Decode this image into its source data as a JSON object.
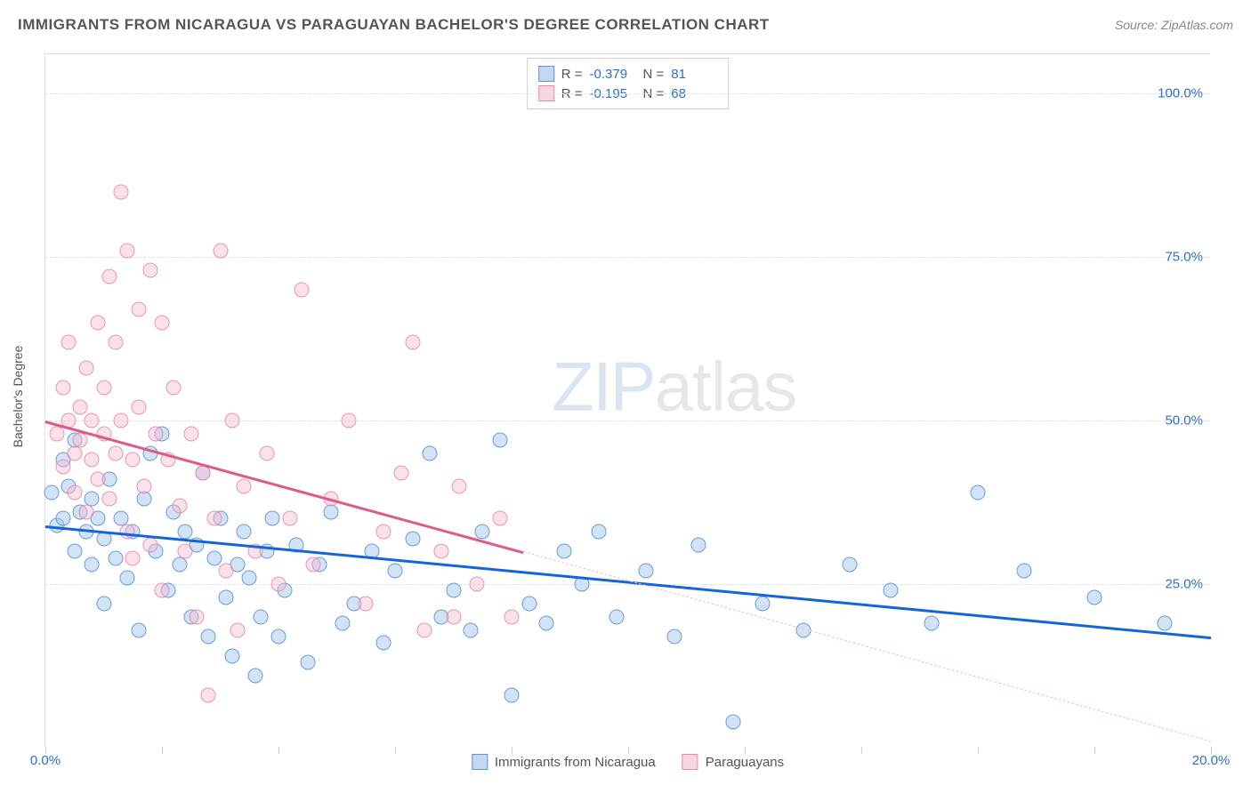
{
  "header": {
    "title": "IMMIGRANTS FROM NICARAGUA VS PARAGUAYAN BACHELOR'S DEGREE CORRELATION CHART",
    "source_prefix": "Source: ",
    "source_name": "ZipAtlas.com"
  },
  "watermark": {
    "part1": "ZIP",
    "part2": "atlas"
  },
  "chart": {
    "type": "scatter",
    "background_color": "#ffffff",
    "grid_color": "#e0e0e0",
    "axis_label_color": "#2f6fc9",
    "text_color": "#555555",
    "xlim": [
      0,
      20
    ],
    "ylim": [
      0,
      106
    ],
    "x_ticks": [
      0,
      2,
      4,
      6,
      8,
      10,
      12,
      14,
      16,
      18,
      20
    ],
    "x_tick_labels": {
      "0": "0.0%",
      "20": "20.0%"
    },
    "y_ticks": [
      25,
      50,
      75,
      100
    ],
    "y_tick_labels": {
      "25": "25.0%",
      "50": "50.0%",
      "75": "75.0%",
      "100": "100.0%"
    },
    "ylabel": "Bachelor's Degree",
    "marker_radius": 8.5,
    "marker_stroke_width": 1.5,
    "marker_fill_opacity": 0.25,
    "series": [
      {
        "id": "nicaragua",
        "label": "Immigrants from Nicaragua",
        "color_stroke": "#5a93d6",
        "color_fill": "#9cc0e8",
        "R": "-0.379",
        "N": "81",
        "trend": {
          "x1": 0,
          "y1": 34,
          "x2": 20,
          "y2": 17,
          "color": "#1565d8",
          "width": 2.5
        },
        "points": [
          [
            0.1,
            39
          ],
          [
            0.2,
            34
          ],
          [
            0.3,
            35
          ],
          [
            0.3,
            44
          ],
          [
            0.4,
            40
          ],
          [
            0.5,
            30
          ],
          [
            0.5,
            47
          ],
          [
            0.6,
            36
          ],
          [
            0.7,
            33
          ],
          [
            0.8,
            38
          ],
          [
            0.8,
            28
          ],
          [
            0.9,
            35
          ],
          [
            1.0,
            22
          ],
          [
            1.0,
            32
          ],
          [
            1.1,
            41
          ],
          [
            1.2,
            29
          ],
          [
            1.3,
            35
          ],
          [
            1.4,
            26
          ],
          [
            1.5,
            33
          ],
          [
            1.6,
            18
          ],
          [
            1.7,
            38
          ],
          [
            1.8,
            45
          ],
          [
            1.9,
            30
          ],
          [
            2.0,
            48
          ],
          [
            2.1,
            24
          ],
          [
            2.2,
            36
          ],
          [
            2.3,
            28
          ],
          [
            2.4,
            33
          ],
          [
            2.5,
            20
          ],
          [
            2.6,
            31
          ],
          [
            2.7,
            42
          ],
          [
            2.8,
            17
          ],
          [
            2.9,
            29
          ],
          [
            3.0,
            35
          ],
          [
            3.1,
            23
          ],
          [
            3.2,
            14
          ],
          [
            3.3,
            28
          ],
          [
            3.4,
            33
          ],
          [
            3.5,
            26
          ],
          [
            3.6,
            11
          ],
          [
            3.7,
            20
          ],
          [
            3.8,
            30
          ],
          [
            3.9,
            35
          ],
          [
            4.0,
            17
          ],
          [
            4.1,
            24
          ],
          [
            4.3,
            31
          ],
          [
            4.5,
            13
          ],
          [
            4.7,
            28
          ],
          [
            4.9,
            36
          ],
          [
            5.1,
            19
          ],
          [
            5.3,
            22
          ],
          [
            5.6,
            30
          ],
          [
            5.8,
            16
          ],
          [
            6.0,
            27
          ],
          [
            6.3,
            32
          ],
          [
            6.6,
            45
          ],
          [
            6.8,
            20
          ],
          [
            7.0,
            24
          ],
          [
            7.3,
            18
          ],
          [
            7.5,
            33
          ],
          [
            7.8,
            47
          ],
          [
            8.0,
            8
          ],
          [
            8.3,
            22
          ],
          [
            8.6,
            19
          ],
          [
            8.9,
            30
          ],
          [
            9.2,
            25
          ],
          [
            9.5,
            33
          ],
          [
            9.8,
            20
          ],
          [
            10.3,
            27
          ],
          [
            10.8,
            17
          ],
          [
            11.2,
            31
          ],
          [
            11.8,
            4
          ],
          [
            12.3,
            22
          ],
          [
            13.0,
            18
          ],
          [
            13.8,
            28
          ],
          [
            14.5,
            24
          ],
          [
            15.2,
            19
          ],
          [
            16.0,
            39
          ],
          [
            16.8,
            27
          ],
          [
            18.0,
            23
          ],
          [
            19.2,
            19
          ]
        ]
      },
      {
        "id": "paraguay",
        "label": "Paraguayans",
        "color_stroke": "#e88aa8",
        "color_fill": "#f5bccf",
        "R": "-0.195",
        "N": "68",
        "trend": {
          "x1": 0,
          "y1": 50,
          "x2": 8.2,
          "y2": 30,
          "color": "#e05a87",
          "width": 2.5,
          "dash_extend": {
            "x2": 20,
            "y2": 1,
            "color": "#f5bccf"
          }
        },
        "points": [
          [
            0.2,
            48
          ],
          [
            0.3,
            43
          ],
          [
            0.3,
            55
          ],
          [
            0.4,
            50
          ],
          [
            0.4,
            62
          ],
          [
            0.5,
            45
          ],
          [
            0.5,
            39
          ],
          [
            0.6,
            52
          ],
          [
            0.6,
            47
          ],
          [
            0.7,
            58
          ],
          [
            0.7,
            36
          ],
          [
            0.8,
            44
          ],
          [
            0.8,
            50
          ],
          [
            0.9,
            65
          ],
          [
            0.9,
            41
          ],
          [
            1.0,
            48
          ],
          [
            1.0,
            55
          ],
          [
            1.1,
            72
          ],
          [
            1.1,
            38
          ],
          [
            1.2,
            45
          ],
          [
            1.2,
            62
          ],
          [
            1.3,
            50
          ],
          [
            1.3,
            85
          ],
          [
            1.4,
            33
          ],
          [
            1.4,
            76
          ],
          [
            1.5,
            44
          ],
          [
            1.5,
            29
          ],
          [
            1.6,
            52
          ],
          [
            1.6,
            67
          ],
          [
            1.7,
            40
          ],
          [
            1.8,
            73
          ],
          [
            1.8,
            31
          ],
          [
            1.9,
            48
          ],
          [
            2.0,
            65
          ],
          [
            2.0,
            24
          ],
          [
            2.1,
            44
          ],
          [
            2.2,
            55
          ],
          [
            2.3,
            37
          ],
          [
            2.4,
            30
          ],
          [
            2.5,
            48
          ],
          [
            2.6,
            20
          ],
          [
            2.7,
            42
          ],
          [
            2.8,
            8
          ],
          [
            2.9,
            35
          ],
          [
            3.0,
            76
          ],
          [
            3.1,
            27
          ],
          [
            3.2,
            50
          ],
          [
            3.3,
            18
          ],
          [
            3.4,
            40
          ],
          [
            3.6,
            30
          ],
          [
            3.8,
            45
          ],
          [
            4.0,
            25
          ],
          [
            4.2,
            35
          ],
          [
            4.4,
            70
          ],
          [
            4.6,
            28
          ],
          [
            4.9,
            38
          ],
          [
            5.2,
            50
          ],
          [
            5.5,
            22
          ],
          [
            5.8,
            33
          ],
          [
            6.1,
            42
          ],
          [
            6.3,
            62
          ],
          [
            6.5,
            18
          ],
          [
            6.8,
            30
          ],
          [
            7.1,
            40
          ],
          [
            7.4,
            25
          ],
          [
            7.8,
            35
          ],
          [
            8.0,
            20
          ],
          [
            7.0,
            20
          ]
        ]
      }
    ]
  },
  "stats_box": {
    "R_label": "R =",
    "N_label": "N ="
  },
  "legend": {
    "items": [
      "Immigrants from Nicaragua",
      "Paraguayans"
    ]
  }
}
